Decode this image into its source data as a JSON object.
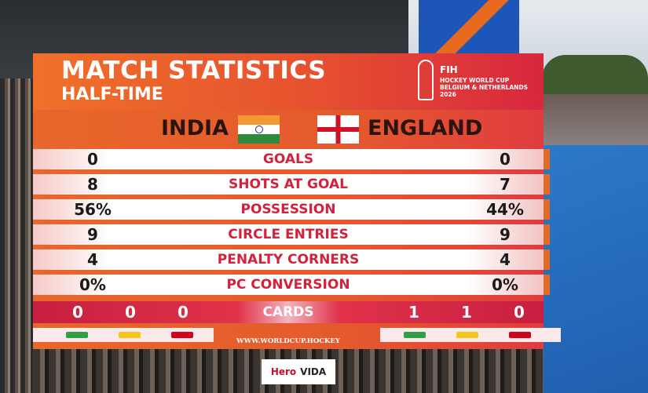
{
  "header": {
    "title": "MATCH STATISTICS",
    "subtitle": "HALF-TIME",
    "logo": {
      "brand": "FIH",
      "event": "HOCKEY WORLD CUP",
      "hosts": "BELGIUM & NETHERLANDS",
      "year": "2026"
    }
  },
  "teams": {
    "home": "INDIA",
    "away": "ENGLAND"
  },
  "table": {
    "rows": [
      [
        "0",
        "GOALS",
        "0"
      ],
      [
        "8",
        "SHOTS AT GOAL",
        "7"
      ],
      [
        "56%",
        "POSSESSION",
        "44%"
      ],
      [
        "9",
        "CIRCLE ENTRIES",
        "9"
      ],
      [
        "4",
        "PENALTY CORNERS",
        "4"
      ],
      [
        "0%",
        "PC CONVERSION",
        "0%"
      ]
    ]
  },
  "cards": {
    "label": "CARDS",
    "home": [
      "0",
      "0",
      "0"
    ],
    "away": [
      "1",
      "1",
      "0"
    ]
  },
  "footer": {
    "url": "WWW.WORLDCUP.HOCKEY",
    "sponsor": [
      "Hero",
      "VIDA"
    ]
  }
}
